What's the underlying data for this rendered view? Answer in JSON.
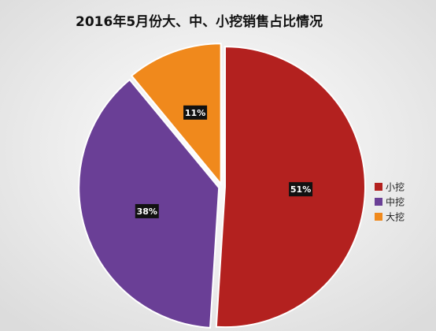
{
  "chart_data": {
    "type": "pie",
    "title": "2016年5月份大、中、小挖销售占比情况",
    "categories": [
      "小挖",
      "中挖",
      "大挖"
    ],
    "values": [
      51,
      38,
      11
    ],
    "value_labels": [
      "51%",
      "38%",
      "11%"
    ],
    "colors": [
      "#b3211f",
      "#6a3f96",
      "#f0891c"
    ],
    "legend": "right"
  }
}
